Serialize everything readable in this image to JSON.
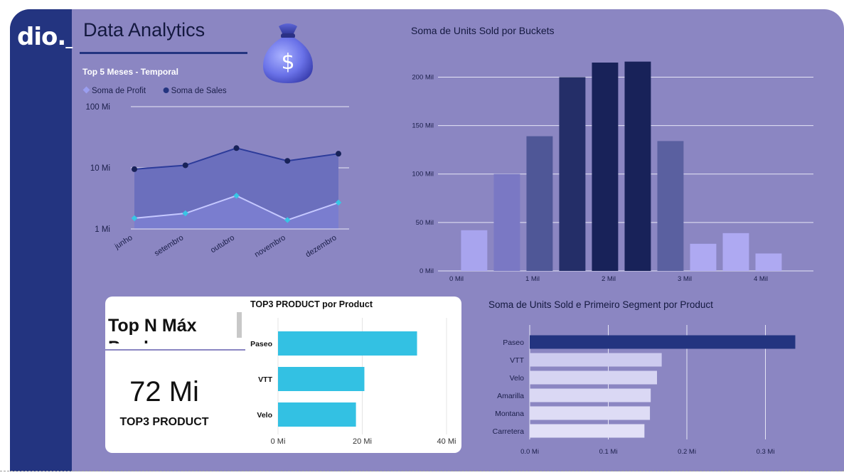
{
  "header": {
    "logo_text": "dio.",
    "logo_cursor": "_",
    "title": "Data Analytics",
    "decoration_icon": "money-bag-icon",
    "decoration_symbol": "$"
  },
  "colors": {
    "background": "#8b86c2",
    "sidebar": "#233480",
    "sales_series": "#233480",
    "profit_series": "#9a9ef0",
    "kpi_bars": "#33c1e3"
  },
  "chart_data": [
    {
      "id": "top5-months",
      "type": "line",
      "title": "Top 5 Meses - Temporal",
      "categories": [
        "junho",
        "setembro",
        "outubro",
        "novembro",
        "dezembro"
      ],
      "y_scale": "log",
      "y_ticks": [
        "1 Mi",
        "10 Mi",
        "100 Mi"
      ],
      "ylim": [
        1,
        100
      ],
      "legend_position": "top-left",
      "grid": true,
      "series": [
        {
          "name": "Soma de Profit",
          "values": [
            1.5,
            1.8,
            3.5,
            1.4,
            2.7
          ],
          "color": "#9a9ef0",
          "marker": "diamond"
        },
        {
          "name": "Soma de  Sales",
          "values": [
            9.5,
            11,
            21,
            13,
            17
          ],
          "color": "#233480",
          "marker": "circle"
        }
      ]
    },
    {
      "id": "units-buckets",
      "type": "bar",
      "title": "Soma de Units Sold por Buckets",
      "x_ticks": [
        "0 Mil",
        "1 Mil",
        "2 Mil",
        "3 Mil",
        "4 Mil"
      ],
      "x_tick_values": [
        0,
        1,
        2,
        3,
        4
      ],
      "y_ticks": [
        "0 Mil",
        "50 Mil",
        "100 Mil",
        "150 Mil",
        "200 Mil"
      ],
      "y_tick_values": [
        0,
        50,
        100,
        150,
        200
      ],
      "ylim": [
        0,
        215
      ],
      "grid": true,
      "bars": [
        {
          "x": 0.06,
          "value": 42,
          "color": "#a8a4ee"
        },
        {
          "x": 0.49,
          "value": 100,
          "color": "#7a78c4"
        },
        {
          "x": 0.92,
          "value": 139,
          "color": "#4f5797"
        },
        {
          "x": 1.35,
          "value": 200,
          "color": "#242e68"
        },
        {
          "x": 1.78,
          "value": 215,
          "color": "#182259"
        },
        {
          "x": 2.21,
          "value": 216,
          "color": "#182259"
        },
        {
          "x": 2.64,
          "value": 134,
          "color": "#5a60a0"
        },
        {
          "x": 3.07,
          "value": 28,
          "color": "#aea9f2"
        },
        {
          "x": 3.5,
          "value": 39,
          "color": "#aea9f2"
        },
        {
          "x": 3.93,
          "value": 18,
          "color": "#aea9f2"
        }
      ]
    },
    {
      "id": "top3-product",
      "type": "bar",
      "orientation": "horizontal",
      "title": "TOP3 PRODUCT por Product",
      "categories": [
        "Paseo",
        "VTT",
        "Velo"
      ],
      "values": [
        33,
        20.5,
        18.5
      ],
      "x_ticks": [
        "0 Mi",
        "20 Mi",
        "40 Mi"
      ],
      "x_tick_values": [
        0,
        20,
        40
      ],
      "xlim": [
        0,
        40
      ],
      "grid": true,
      "color": "#33c1e3"
    },
    {
      "id": "units-segment",
      "type": "bar",
      "orientation": "horizontal",
      "title": "Soma de Units Sold e Primeiro Segment por Product",
      "categories": [
        "Paseo",
        "VTT",
        "Velo",
        "Amarilla",
        "Montana",
        "Carretera"
      ],
      "values": [
        0.338,
        0.168,
        0.162,
        0.154,
        0.153,
        0.146
      ],
      "colors": [
        "#233480",
        "#cdcbef",
        "#d6d4f2",
        "#dad8f4",
        "#dedcf5",
        "#e2e0f7"
      ],
      "x_ticks": [
        "0,0 Mi",
        "0,1 Mi",
        "0,2 Mi",
        "0,3 Mi"
      ],
      "x_tick_values": [
        0,
        0.1,
        0.2,
        0.3
      ],
      "xlim": [
        0,
        0.36
      ],
      "grid": true
    }
  ],
  "kpi": {
    "filter_label": "Top N Máx Prod",
    "value": "72 Mi",
    "label": "TOP3 PRODUCT"
  }
}
